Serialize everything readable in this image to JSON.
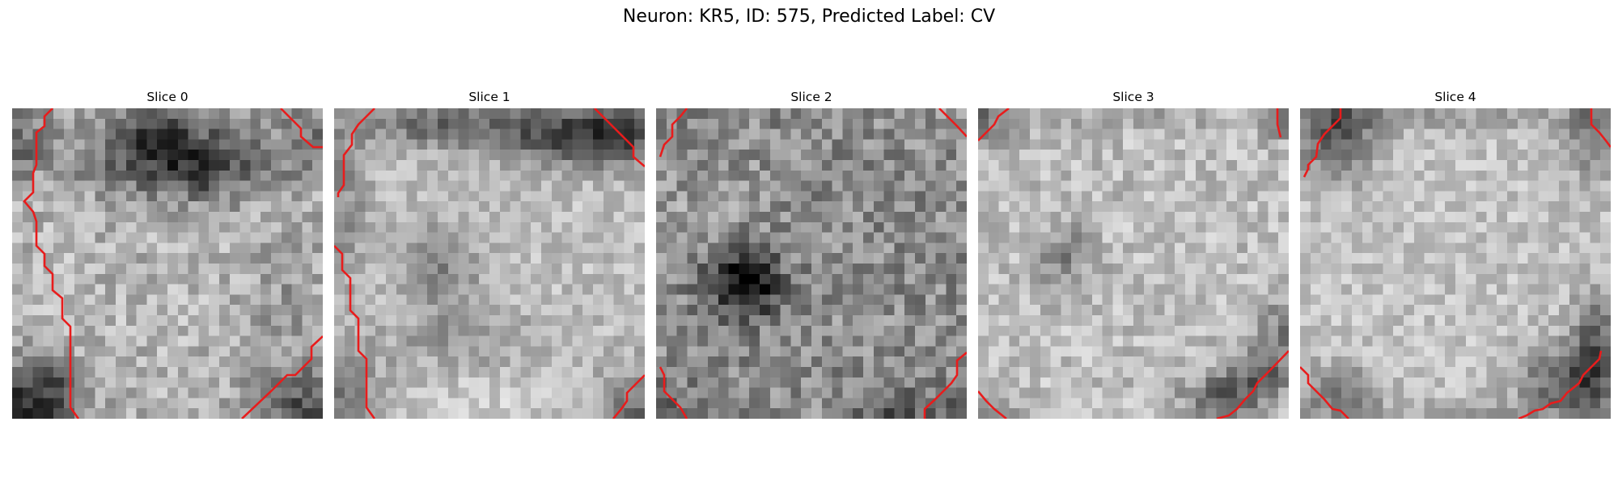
{
  "figure": {
    "title": "Neuron: KR5, ID: 575, Predicted Label: CV"
  },
  "panels": [
    {
      "title": "Slice 0"
    },
    {
      "title": "Slice 1"
    },
    {
      "title": "Slice 2"
    },
    {
      "title": "Slice 3"
    },
    {
      "title": "Slice 4"
    }
  ],
  "colors": {
    "contour": "#e81c1c"
  }
}
